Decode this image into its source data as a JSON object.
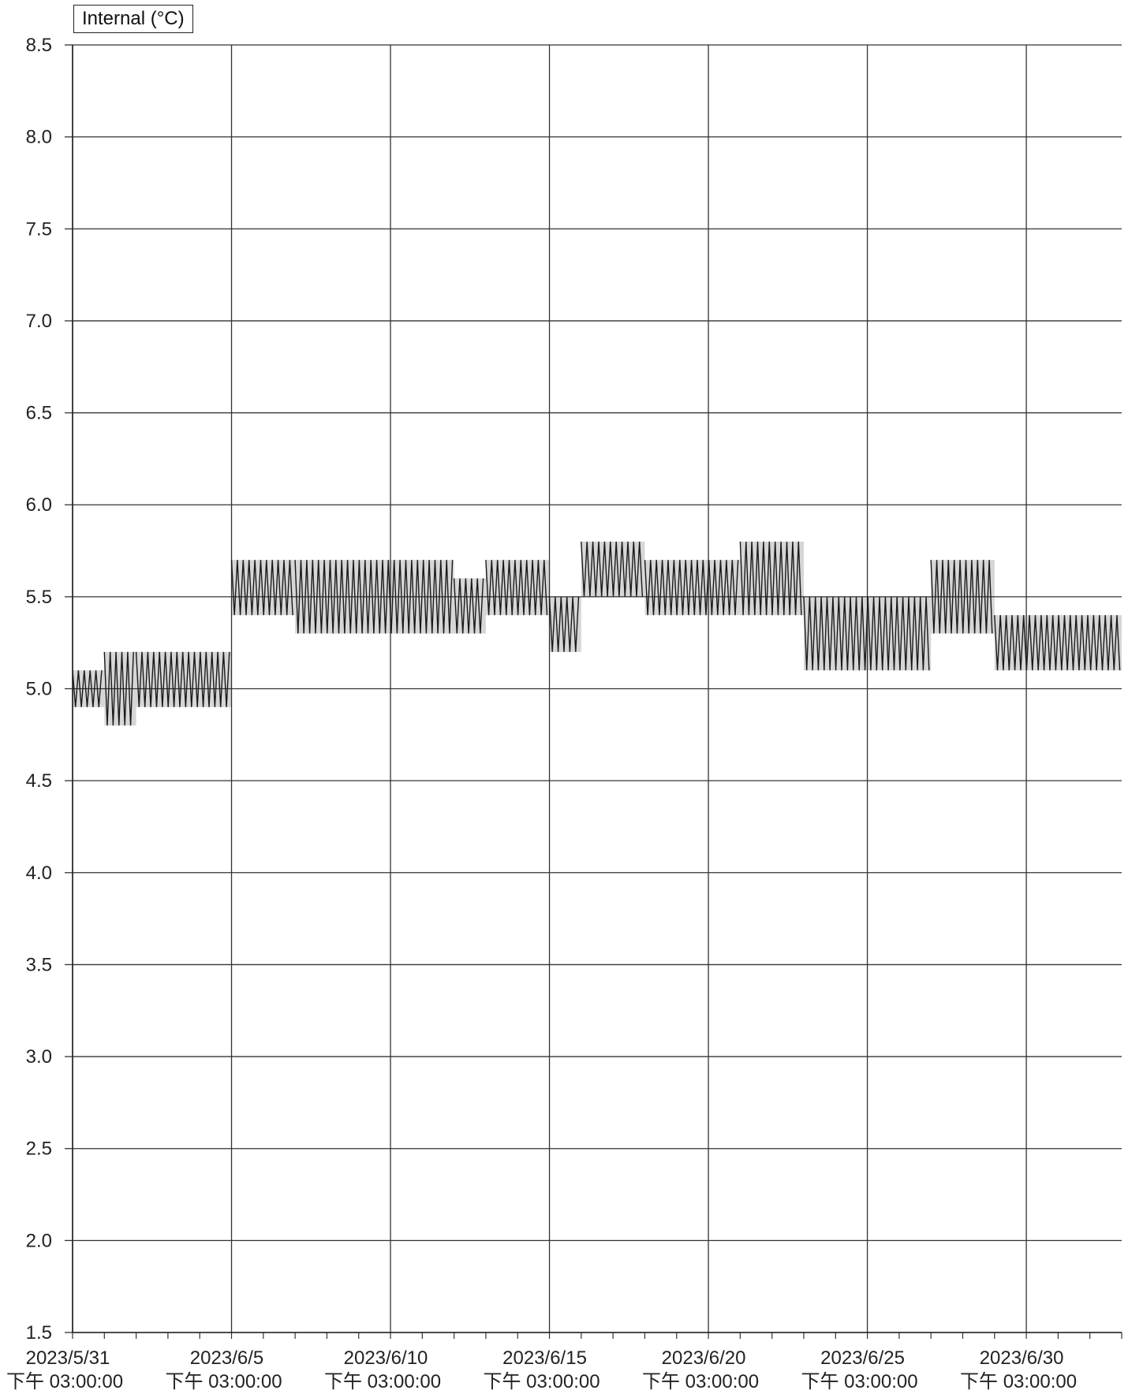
{
  "chart_data": {
    "type": "line",
    "legend": "Internal (°C)",
    "legend_position": "top-left",
    "grid": true,
    "ylim": [
      1.5,
      8.5
    ],
    "xlim": [
      "2023-05-31 15:00",
      "2023-07-03 15:00"
    ],
    "y_ticks": [
      "8.5",
      "8.0",
      "7.5",
      "7.0",
      "6.5",
      "6.0",
      "5.5",
      "5.0",
      "4.5",
      "4.0",
      "3.5",
      "3.0",
      "2.5",
      "2.0",
      "1.5"
    ],
    "x_ticks": [
      {
        "date": "2023/5/31",
        "time": "下午 03:00:00"
      },
      {
        "date": "2023/6/5",
        "time": "下午 03:00:00"
      },
      {
        "date": "2023/6/10",
        "time": "下午 03:00:00"
      },
      {
        "date": "2023/6/15",
        "time": "下午 03:00:00"
      },
      {
        "date": "2023/6/20",
        "time": "下午 03:00:00"
      },
      {
        "date": "2023/6/25",
        "time": "下午 03:00:00"
      },
      {
        "date": "2023/6/30",
        "time": "下午 03:00:00"
      }
    ],
    "series": [
      {
        "name": "Internal (°C)",
        "color": "#1a1a1a",
        "segments": [
          {
            "start": "2023-05-31 15:00",
            "end": "2023-06-01 15:00",
            "low": 4.9,
            "high": 5.1
          },
          {
            "start": "2023-06-01 15:00",
            "end": "2023-06-02 15:00",
            "low": 4.8,
            "high": 5.2
          },
          {
            "start": "2023-06-02 15:00",
            "end": "2023-06-05 15:00",
            "low": 4.9,
            "high": 5.2
          },
          {
            "start": "2023-06-05 15:00",
            "end": "2023-06-07 15:00",
            "low": 5.4,
            "high": 5.7
          },
          {
            "start": "2023-06-07 15:00",
            "end": "2023-06-12 15:00",
            "low": 5.3,
            "high": 5.7
          },
          {
            "start": "2023-06-12 15:00",
            "end": "2023-06-13 15:00",
            "low": 5.3,
            "high": 5.6
          },
          {
            "start": "2023-06-13 15:00",
            "end": "2023-06-15 15:00",
            "low": 5.4,
            "high": 5.7
          },
          {
            "start": "2023-06-15 15:00",
            "end": "2023-06-16 15:00",
            "low": 5.2,
            "high": 5.5
          },
          {
            "start": "2023-06-16 15:00",
            "end": "2023-06-18 15:00",
            "low": 5.5,
            "high": 5.8
          },
          {
            "start": "2023-06-18 15:00",
            "end": "2023-06-21 15:00",
            "low": 5.4,
            "high": 5.7
          },
          {
            "start": "2023-06-21 15:00",
            "end": "2023-06-23 15:00",
            "low": 5.4,
            "high": 5.8
          },
          {
            "start": "2023-06-23 15:00",
            "end": "2023-06-27 15:00",
            "low": 5.1,
            "high": 5.5
          },
          {
            "start": "2023-06-27 15:00",
            "end": "2023-06-29 15:00",
            "low": 5.3,
            "high": 5.7
          },
          {
            "start": "2023-06-29 15:00",
            "end": "2023-07-03 15:00",
            "low": 5.1,
            "high": 5.4
          }
        ]
      }
    ]
  }
}
